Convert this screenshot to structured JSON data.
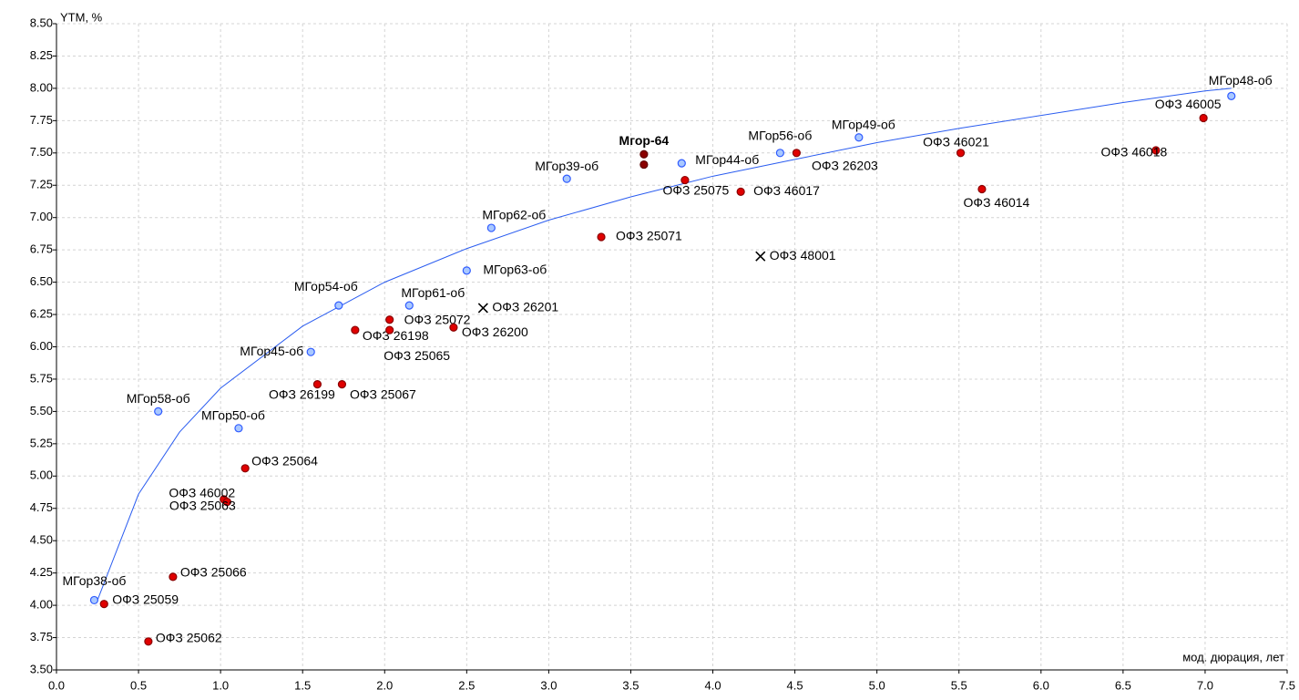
{
  "chart_data": {
    "type": "scatter",
    "y_label": "YTM, %",
    "x_label": "мод. дюрация, лет",
    "xlim": [
      0,
      7.5
    ],
    "ylim": [
      3.5,
      8.5
    ],
    "xticks": [
      {
        "value": 0,
        "label": "0.0"
      },
      0.5,
      {
        "value": 1,
        "label": "1.0"
      },
      1.5,
      {
        "value": 2,
        "label": "2.0"
      },
      2.5,
      {
        "value": 3,
        "label": "3.0"
      },
      3.5,
      {
        "value": 4,
        "label": "4.0"
      },
      4.5,
      {
        "value": 5,
        "label": "5.0"
      },
      5.5,
      {
        "value": 6,
        "label": "6.0"
      },
      6.5,
      {
        "value": 7,
        "label": "7.0"
      },
      7.5
    ],
    "yticks": [
      {
        "value": 3.5,
        "label": "3.50"
      },
      3.75,
      {
        "value": 4,
        "label": "4.00"
      },
      4.25,
      {
        "value": 4.5,
        "label": "4.50"
      },
      4.75,
      {
        "value": 5,
        "label": "5.00"
      },
      5.25,
      {
        "value": 5.5,
        "label": "5.50"
      },
      5.75,
      {
        "value": 6,
        "label": "6.00"
      },
      6.25,
      {
        "value": 6.5,
        "label": "6.50"
      },
      6.75,
      {
        "value": 7,
        "label": "7.00"
      },
      7.25,
      {
        "value": 7.5,
        "label": "7.50"
      },
      7.75,
      {
        "value": 8,
        "label": "8.00"
      },
      8.25,
      {
        "value": 8.5,
        "label": "8.50"
      }
    ],
    "grid": true,
    "trendline": {
      "color": "#2a5cf0",
      "x": [
        0.25,
        0.5,
        0.75,
        1,
        1.5,
        2,
        2.5,
        3,
        3.5,
        4,
        4.5,
        5,
        5.5,
        6,
        6.5,
        7,
        7.16
      ],
      "values": [
        4.04,
        4.86,
        5.34,
        5.68,
        6.16,
        6.5,
        6.76,
        6.98,
        7.16,
        7.32,
        7.45,
        7.58,
        7.69,
        7.79,
        7.89,
        7.98,
        8.0
      ]
    },
    "series": [
      {
        "color": "#2f5bff",
        "fill": "#a9c8ff",
        "marker": "circle",
        "labels": [
          "МГор38-об",
          "МГор58-об",
          "МГор50-об",
          "МГор45-об",
          "МГор54-об",
          "МГор61-об",
          "МГор63-об",
          "МГор62-об",
          "МГор39-об",
          "МГор44-об",
          "МГор56-об",
          "МГор49-об",
          "МГор48-об"
        ],
        "x": [
          0.23,
          0.62,
          1.11,
          1.55,
          1.72,
          2.15,
          2.5,
          2.65,
          3.11,
          3.81,
          4.41,
          4.89,
          7.16
        ],
        "values": [
          4.04,
          5.5,
          5.37,
          5.96,
          6.32,
          6.32,
          6.59,
          6.92,
          7.3,
          7.42,
          7.5,
          7.62,
          7.94
        ]
      },
      {
        "color": "#8a0000",
        "fill": "#e00000",
        "marker": "circle",
        "labels": [
          "ОФЗ 25059",
          "ОФЗ 25062",
          "ОФЗ 25066",
          "ОФЗ 46002",
          "ОФЗ 25063",
          "ОФЗ 25064",
          "ОФЗ 26199",
          "ОФЗ 25067",
          "ОФЗ 26198",
          "ОФЗ 25072",
          "ОФЗ 25065",
          "ОФЗ 26200",
          "ОФЗ 25071",
          "ОФЗ 25075",
          "ОФЗ 46017",
          "ОФЗ 26203",
          "ОФЗ 46021",
          "ОФЗ 46014",
          "ОФЗ 46018",
          "ОФЗ 46005"
        ],
        "x": [
          0.29,
          0.56,
          0.71,
          1.02,
          1.04,
          1.15,
          1.59,
          1.74,
          1.82,
          2.03,
          2.03,
          2.42,
          3.32,
          3.83,
          4.17,
          4.51,
          5.51,
          5.64,
          6.7,
          6.99
        ],
        "values": [
          4.01,
          3.72,
          4.22,
          4.82,
          4.8,
          5.06,
          5.71,
          5.71,
          6.13,
          6.21,
          6.13,
          6.15,
          6.85,
          7.29,
          7.2,
          7.5,
          7.5,
          7.22,
          7.52,
          7.77
        ]
      },
      {
        "color": "#600000",
        "fill": "#8b0000",
        "marker": "circle",
        "label": "Мгор-64",
        "x": [
          3.58,
          3.58
        ],
        "values": [
          7.49,
          7.41
        ]
      },
      {
        "color": "#000000",
        "marker": "x",
        "labels": [
          "ОФЗ 26201",
          "ОФЗ 48001"
        ],
        "x": [
          2.6,
          4.29
        ],
        "values": [
          6.3,
          6.7
        ]
      }
    ]
  }
}
